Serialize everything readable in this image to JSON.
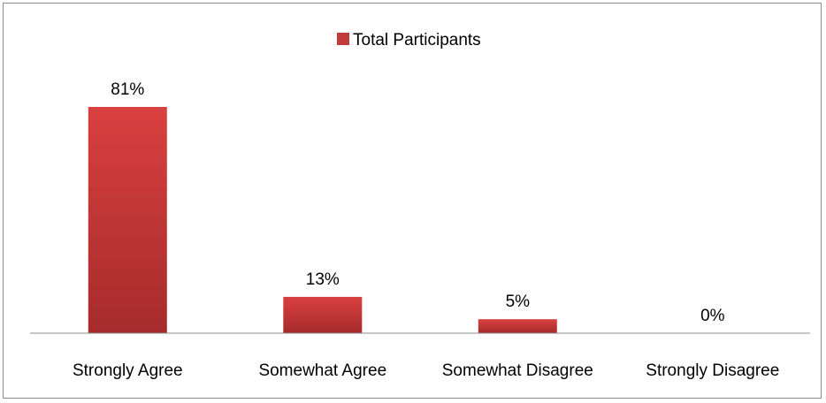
{
  "chart_data": {
    "type": "bar",
    "title": "",
    "xlabel": "",
    "ylabel": "",
    "categories": [
      "Strongly Agree",
      "Somewhat Agree",
      "Somewhat Disagree",
      "Strongly Disagree"
    ],
    "series": [
      {
        "name": "Total Participants",
        "values": [
          81,
          13,
          5,
          0
        ],
        "data_labels": [
          "81%",
          "13%",
          "5%",
          "0%"
        ],
        "color": "#c0393b"
      }
    ],
    "ylim": [
      0,
      100
    ],
    "grid": false,
    "legend_position": "top"
  }
}
